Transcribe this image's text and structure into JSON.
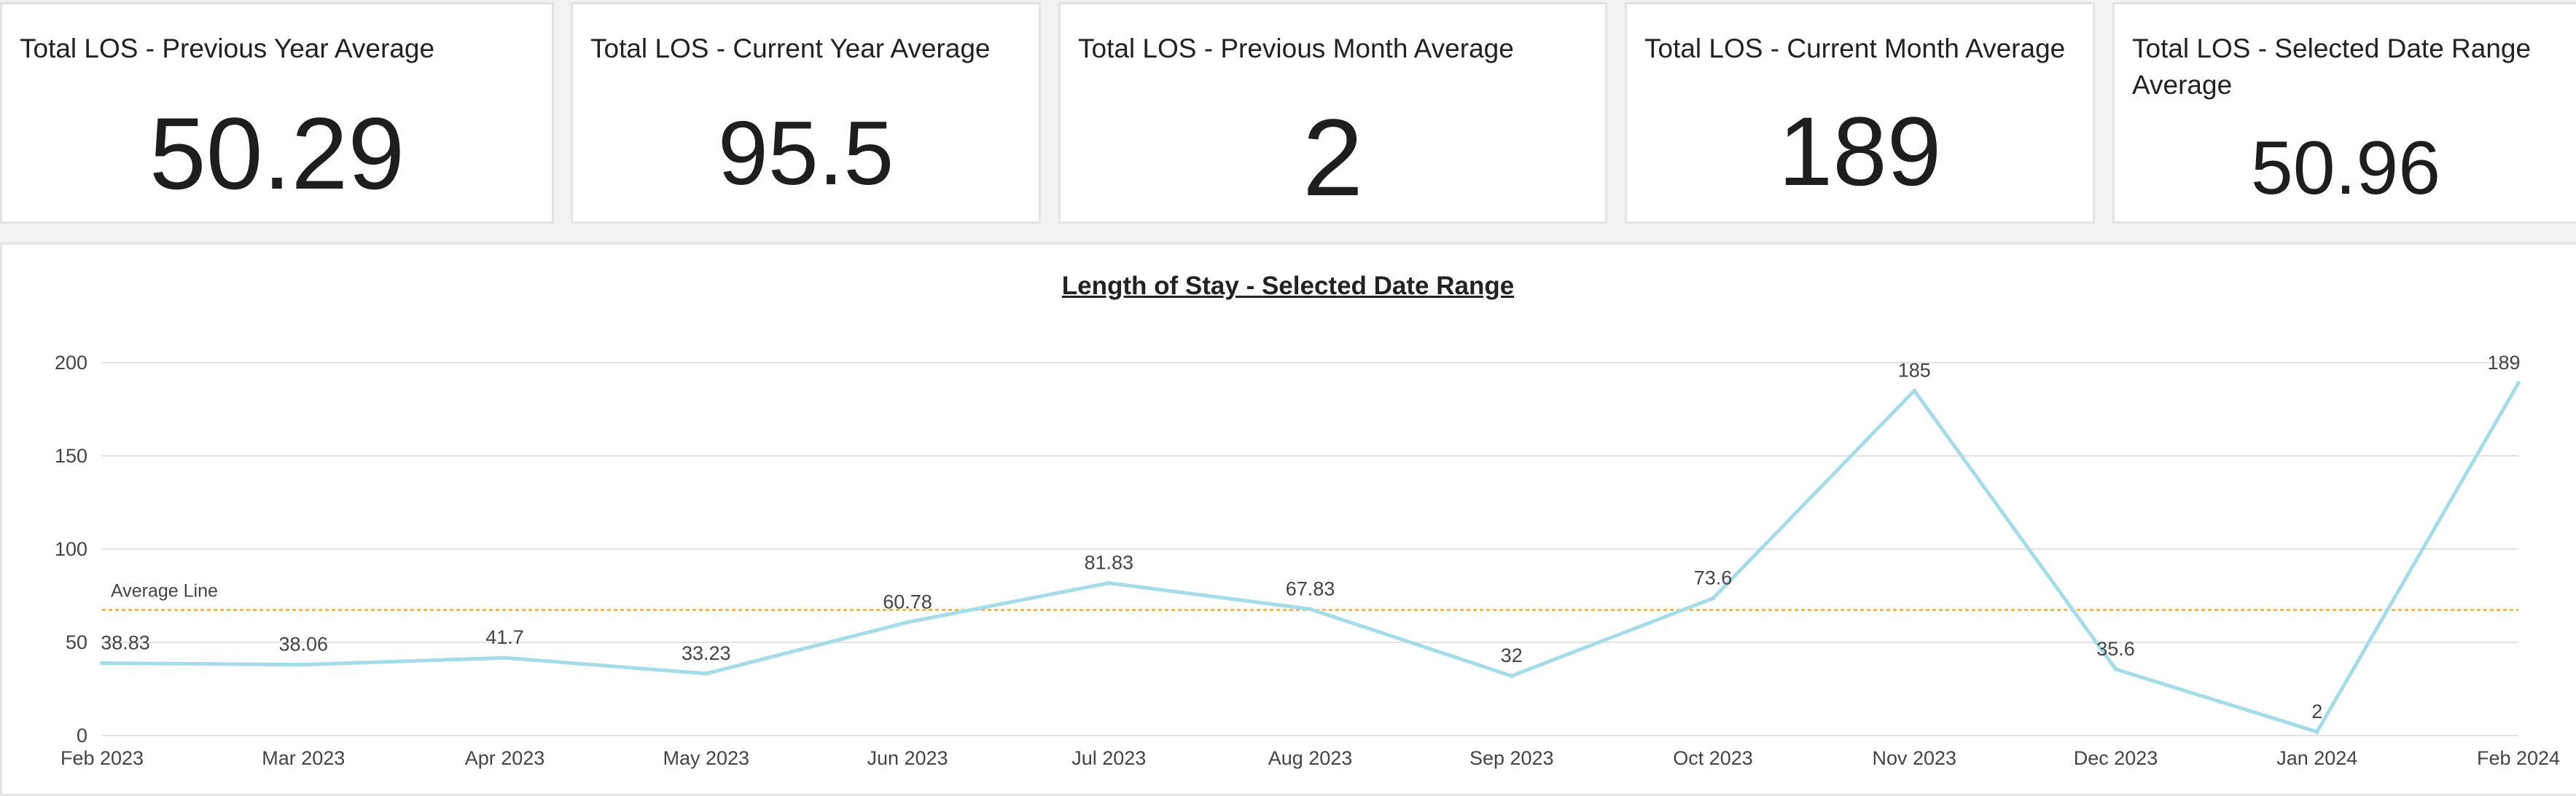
{
  "kpis": [
    {
      "title": "Total LOS - Previous Year Average",
      "value": "50.29"
    },
    {
      "title": "Total LOS - Current Year Average",
      "value": "95.5"
    },
    {
      "title": "Total LOS  - Previous Month Average",
      "value": "2"
    },
    {
      "title": "Total LOS - Current Month Average",
      "value": "189"
    },
    {
      "title": "Total LOS - Selected Date Range Average",
      "value": "50.96"
    }
  ],
  "chart_data": {
    "type": "line",
    "title": "Length of Stay - Selected Date Range",
    "xlabel": "",
    "ylabel": "",
    "categories": [
      "Feb 2023",
      "Mar 2023",
      "Apr 2023",
      "May 2023",
      "Jun 2023",
      "Jul 2023",
      "Aug 2023",
      "Sep 2023",
      "Oct 2023",
      "Nov 2023",
      "Dec 2023",
      "Jan 2024",
      "Feb 2024"
    ],
    "series": [
      {
        "values": [
          38.83,
          38.06,
          41.7,
          33.23,
          60.78,
          81.83,
          67.83,
          32,
          73.6,
          185,
          35.6,
          2,
          189
        ],
        "color": "#a5dcea"
      }
    ],
    "data_labels": [
      "38.83",
      "38.06",
      "41.7",
      "33.23",
      "60.78",
      "81.83",
      "67.83",
      "32",
      "73.6",
      "185",
      "35.6",
      "2",
      "189"
    ],
    "ylim": [
      0,
      200
    ],
    "yticks": [
      0,
      50,
      100,
      150,
      200
    ],
    "ytick_labels": [
      "0",
      "50",
      "100",
      "150",
      "200"
    ],
    "grid": true,
    "reference_line": {
      "label": "Average Line",
      "value": 67.4,
      "color": "#f2a93b"
    },
    "gridline_color": "#e2e2e2"
  }
}
